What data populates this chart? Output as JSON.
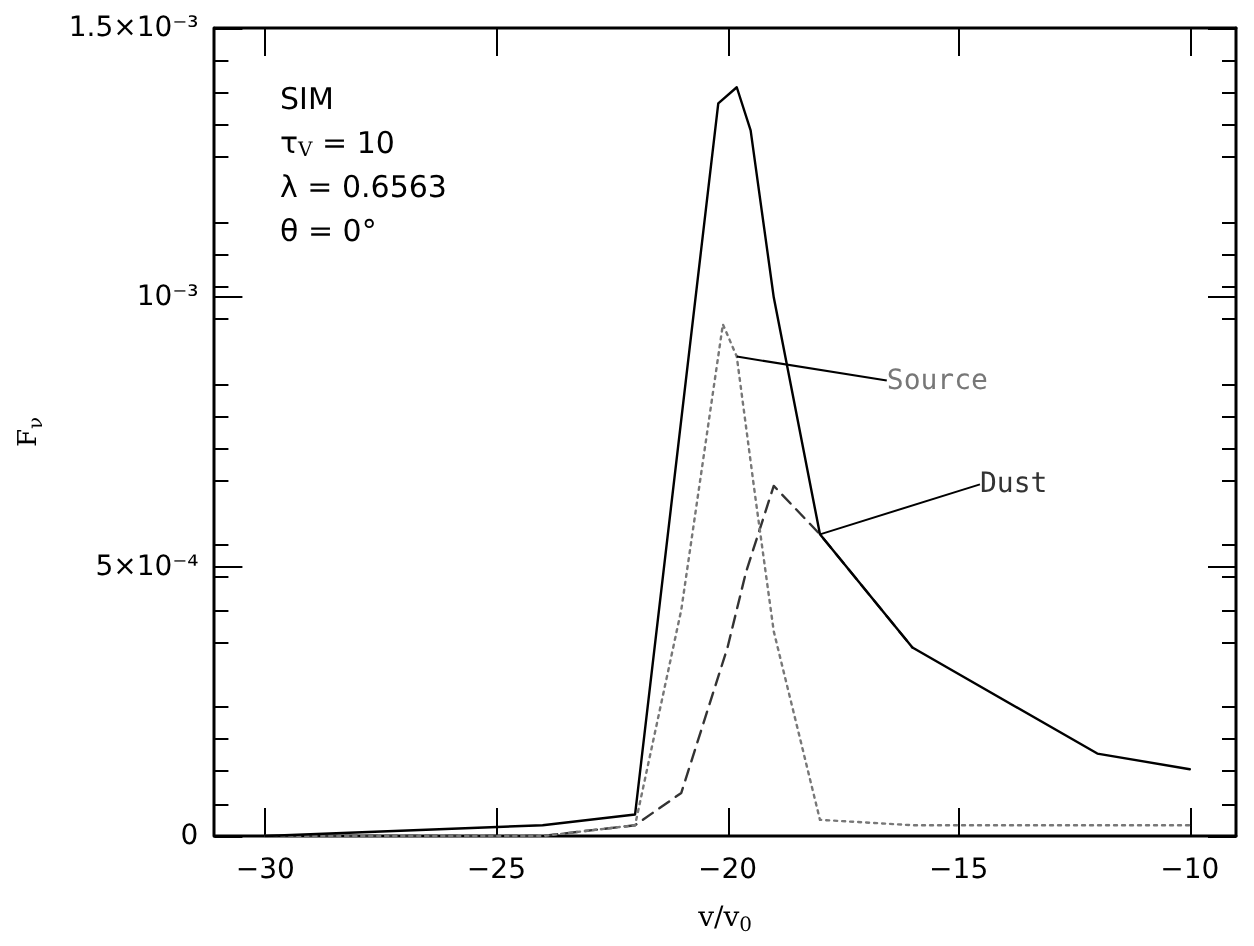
{
  "chart_data": {
    "type": "line",
    "xlabel": "v/v$_{0}$",
    "ylabel": "F$_{ν}$",
    "annotations": [
      "SIM",
      "τ$_{V}$ = 10",
      "λ = 0.6563",
      "θ = 0°"
    ],
    "xlim": [
      -31.1,
      -9
    ],
    "xticks": [
      -30,
      -25,
      -20,
      -15,
      -10
    ],
    "ylim": [
      0,
      0.0015
    ],
    "yticks": [
      {
        "value": 0,
        "label": "0"
      },
      {
        "value": 0.0005,
        "label": "5×10⁻⁴"
      },
      {
        "value": 0.001,
        "label": "10⁻³"
      },
      {
        "value": 0.0015,
        "label": "1.5×10⁻³"
      }
    ],
    "grid": false,
    "legend": false,
    "marker": "none",
    "series": [
      {
        "color": "#000000",
        "line_style": "solid",
        "x": [
          -30,
          -24,
          -22,
          -20.2,
          -19.8,
          -19.5,
          -19,
          -18,
          -16,
          -12,
          -10
        ],
        "values": [
          0,
          2e-05,
          4e-05,
          0.00136,
          0.00139,
          0.00131,
          0.001,
          0.00056,
          0.00035,
          0.000153,
          0.000124
        ]
      },
      {
        "name": "Source",
        "color": "#777777",
        "line_style": "dotted",
        "x": [
          -30,
          -24,
          -22,
          -21,
          -20.1,
          -19.8,
          -19.4,
          -19,
          -18,
          -16,
          -12,
          -10
        ],
        "values": [
          0,
          0,
          2e-05,
          0.00042,
          0.00095,
          0.00089,
          0.00063,
          0.00038,
          3e-05,
          2e-05,
          2e-05,
          2e-05
        ]
      },
      {
        "name": "Dust",
        "color": "#333333",
        "line_style": "dashed",
        "x": [
          -30,
          -24,
          -22,
          -21,
          -20,
          -19.6,
          -19,
          -18,
          -16
        ],
        "values": [
          0,
          0,
          2e-05,
          8e-05,
          0.00035,
          0.00049,
          0.00065,
          0.00056,
          0.00035
        ]
      }
    ]
  }
}
